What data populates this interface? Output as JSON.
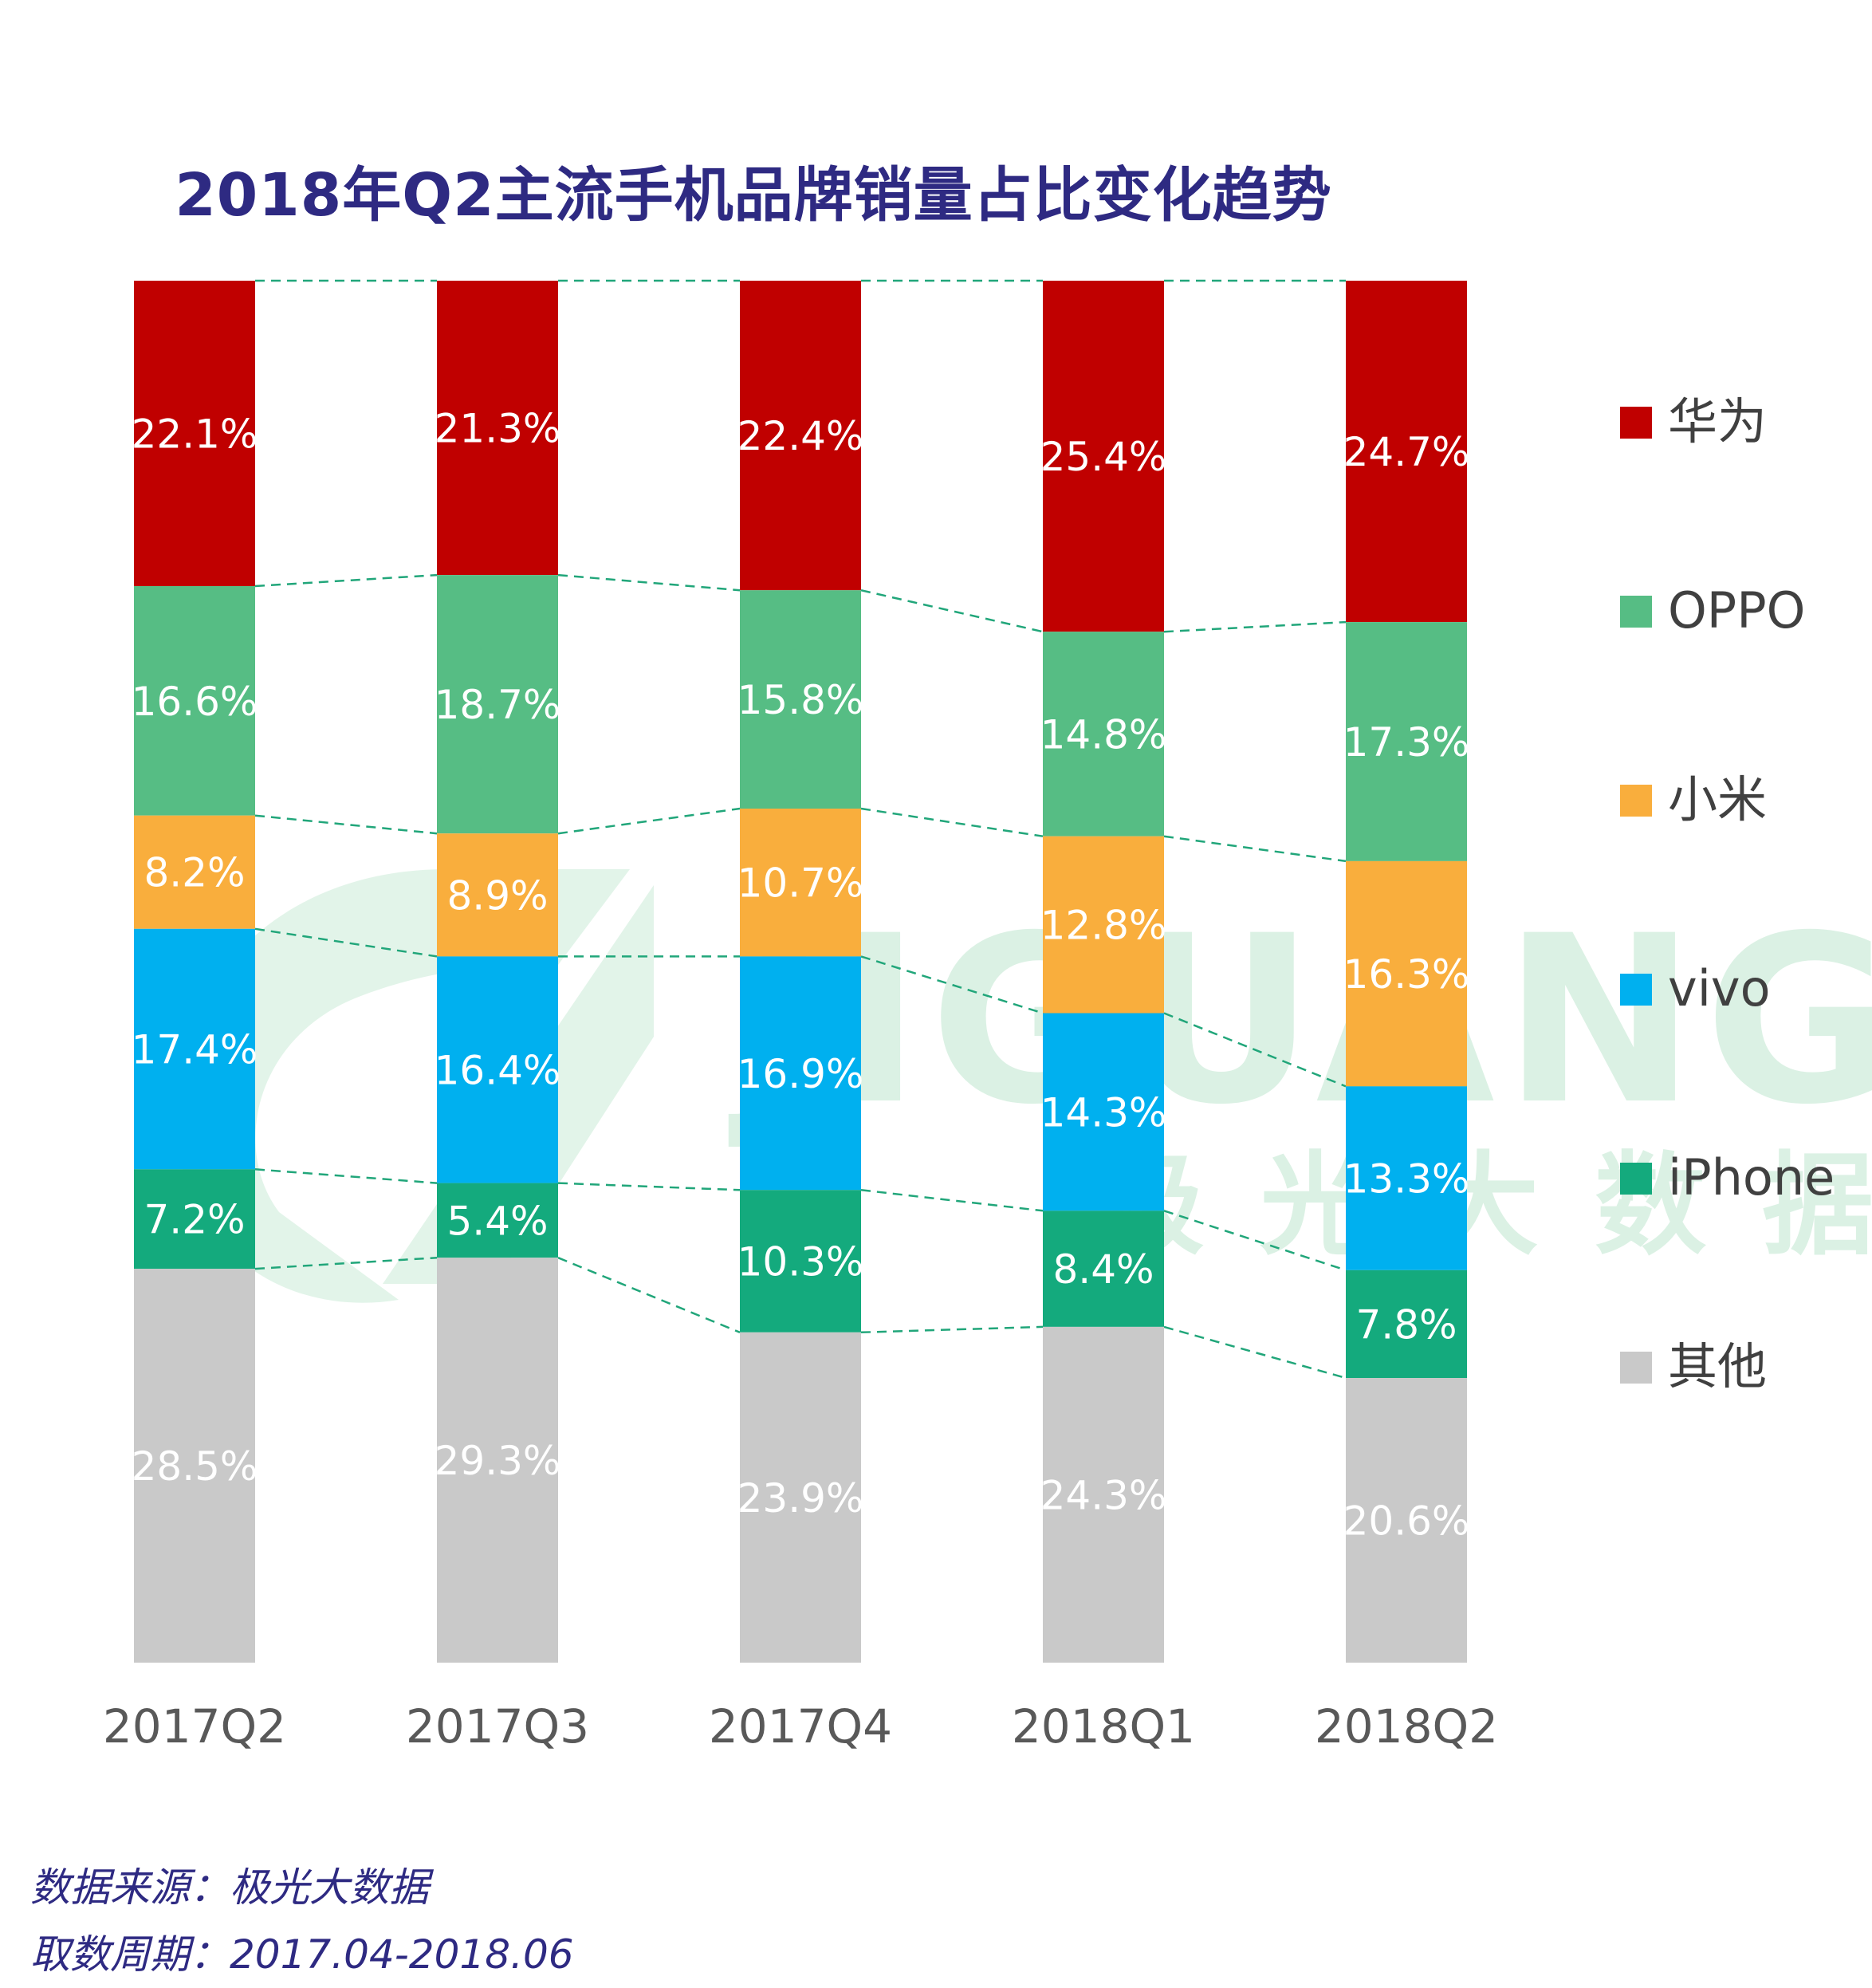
{
  "chart_data": {
    "type": "bar",
    "stacked": true,
    "normalized": true,
    "title": "2018年Q2主流手机品牌销量占比变化趋势",
    "categories": [
      "2017Q2",
      "2017Q3",
      "2017Q4",
      "2018Q1",
      "2018Q2"
    ],
    "series": [
      {
        "name": "华为",
        "color": "#c00000",
        "values": [
          22.1,
          21.3,
          22.4,
          25.4,
          24.7
        ],
        "labels": [
          "22.1%",
          "21.3%",
          "22.4%",
          "25.4%",
          "24.7%"
        ]
      },
      {
        "name": "OPPO",
        "color": "#56bd84",
        "values": [
          16.6,
          18.7,
          15.8,
          14.8,
          17.3
        ],
        "labels": [
          "16.6%",
          "18.7%",
          "15.8%",
          "14.8%",
          "17.3%"
        ]
      },
      {
        "name": "小米",
        "color": "#f9ae3d",
        "values": [
          8.2,
          8.9,
          10.7,
          12.8,
          16.3
        ],
        "labels": [
          "8.2%",
          "8.9%",
          "10.7%",
          "12.8%",
          "16.3%"
        ]
      },
      {
        "name": "vivo",
        "color": "#00b0ef",
        "values": [
          17.4,
          16.4,
          16.9,
          14.3,
          13.3
        ],
        "labels": [
          "17.4%",
          "16.4%",
          "16.9%",
          "14.3%",
          "13.3%"
        ]
      },
      {
        "name": "iPhone",
        "color": "#14aa7d",
        "values": [
          7.2,
          5.4,
          10.3,
          8.4,
          7.8
        ],
        "labels": [
          "7.2%",
          "5.4%",
          "10.3%",
          "8.4%",
          "7.8%"
        ]
      },
      {
        "name": "其他",
        "color": "#c9c9c9",
        "values": [
          28.5,
          29.3,
          23.9,
          24.3,
          20.6
        ],
        "labels": [
          "28.5%",
          "29.3%",
          "23.9%",
          "24.3%",
          "20.6%"
        ]
      }
    ],
    "legend_position": "right",
    "connector_color": "#21a67a",
    "grid": false
  },
  "watermark": {
    "latin": "JIGUANG",
    "chinese": "极光大数据"
  },
  "footer": {
    "source": "数据来源：极光大数据",
    "period": "取数周期：2017.04-2018.06"
  }
}
